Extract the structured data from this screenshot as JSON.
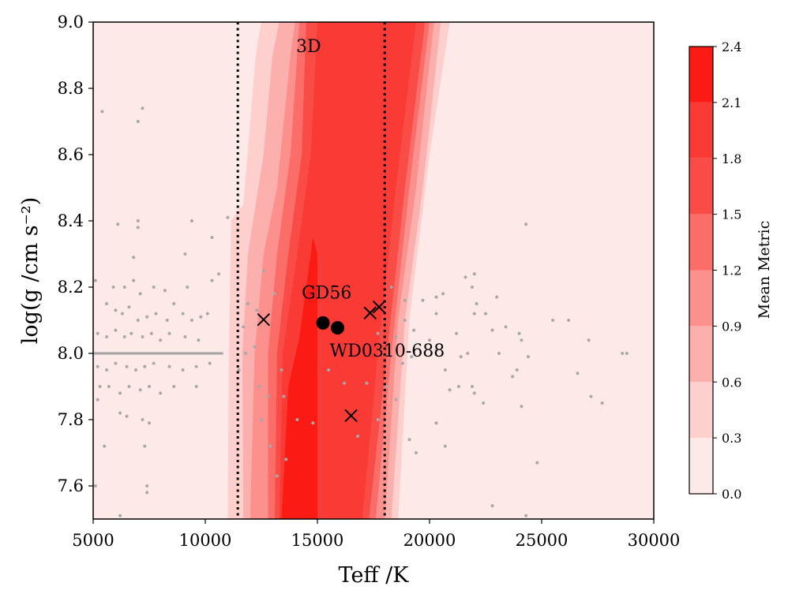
{
  "chart_data": {
    "type": "contour",
    "xlabel": "Teff /K",
    "ylabel": "log(g /cm s⁻²)",
    "xlim": [
      5000,
      30000
    ],
    "ylim": [
      7.5,
      9.0
    ],
    "xticks": [
      "5000",
      "10000",
      "15000",
      "20000",
      "25000",
      "30000"
    ],
    "yticks": [
      "7.6",
      "7.8",
      "8.0",
      "8.2",
      "8.4",
      "8.6",
      "8.8",
      "9.0"
    ],
    "colorbar": {
      "label": "Mean Metric",
      "range": [
        0.0,
        2.4
      ],
      "ticks": [
        "0.0",
        "0.3",
        "0.6",
        "0.9",
        "1.2",
        "1.5",
        "1.8",
        "2.1",
        "2.4"
      ],
      "level_colors": [
        "#fde9e8",
        "#fdcfcd",
        "#fcb0ad",
        "#fc908c",
        "#fb6d68",
        "#fa4c47",
        "#f93a35",
        "#fa1b15"
      ]
    },
    "contour_bands": [
      {
        "level": 1,
        "left": [
          [
            11000,
            7.5
          ],
          [
            11050,
            8.0
          ],
          [
            11150,
            8.4
          ],
          [
            11700,
            8.45
          ],
          [
            12250,
            8.9
          ],
          [
            12500,
            9.0
          ]
        ],
        "right": [
          [
            20900,
            9.0
          ],
          [
            20000,
            8.6
          ],
          [
            19100,
            8.1
          ],
          [
            18600,
            7.5
          ]
        ]
      },
      {
        "level": 2,
        "left": [
          [
            11700,
            7.5
          ],
          [
            11650,
            8.0
          ],
          [
            11900,
            8.3
          ],
          [
            12600,
            8.6
          ],
          [
            13000,
            8.9
          ],
          [
            13300,
            9.0
          ]
        ],
        "right": [
          [
            20500,
            9.0
          ],
          [
            19700,
            8.5
          ],
          [
            18900,
            8.1
          ],
          [
            18300,
            7.5
          ]
        ]
      },
      {
        "level": 3,
        "left": [
          [
            12000,
            7.5
          ],
          [
            12200,
            8.0
          ],
          [
            12600,
            8.3
          ],
          [
            13200,
            8.5
          ],
          [
            13800,
            8.9
          ],
          [
            14000,
            9.0
          ]
        ],
        "right": [
          [
            20200,
            9.0
          ],
          [
            19400,
            8.5
          ],
          [
            18600,
            8.1
          ],
          [
            18000,
            7.5
          ]
        ]
      },
      {
        "level": 4,
        "left": [
          [
            12800,
            7.5
          ],
          [
            12800,
            8.0
          ],
          [
            13200,
            8.3
          ],
          [
            13800,
            8.6
          ],
          [
            14200,
            9.0
          ]
        ],
        "right": [
          [
            20000,
            9.0
          ],
          [
            19100,
            8.5
          ],
          [
            18300,
            8.0
          ],
          [
            17600,
            7.5
          ]
        ]
      },
      {
        "level": 5,
        "left": [
          [
            13100,
            7.5
          ],
          [
            13200,
            8.0
          ],
          [
            13700,
            8.3
          ],
          [
            14300,
            8.6
          ],
          [
            14500,
            9.0
          ]
        ],
        "right": [
          [
            19800,
            9.0
          ],
          [
            18900,
            8.5
          ],
          [
            18100,
            8.0
          ],
          [
            17300,
            7.5
          ]
        ]
      },
      {
        "level": 6,
        "left": [
          [
            13300,
            7.5
          ],
          [
            13450,
            8.0
          ],
          [
            14100,
            8.3
          ],
          [
            14700,
            8.6
          ],
          [
            15000,
            9.0
          ]
        ],
        "right": [
          [
            19400,
            9.0
          ],
          [
            18500,
            8.5
          ],
          [
            17700,
            8.0
          ],
          [
            17000,
            7.5
          ]
        ]
      },
      {
        "level": 7,
        "left": [
          [
            13400,
            7.5
          ],
          [
            13700,
            7.9
          ],
          [
            14200,
            8.05
          ],
          [
            14800,
            8.35
          ],
          [
            15000,
            8.3
          ],
          [
            15000,
            7.5
          ]
        ],
        "right": []
      }
    ],
    "vlines": [
      11450,
      18000
    ],
    "annotations": [
      {
        "text": "3D",
        "x": 14050,
        "y": 8.91
      },
      {
        "text": "GD56",
        "x": 14300,
        "y": 8.165
      },
      {
        "text": "WD0310-688",
        "x": 15550,
        "y": 7.99
      }
    ],
    "circles": [
      {
        "x": 15250,
        "y": 8.092
      },
      {
        "x": 15900,
        "y": 8.077
      }
    ],
    "crosses": [
      {
        "x": 12600,
        "y": 8.102
      },
      {
        "x": 17350,
        "y": 8.122
      },
      {
        "x": 17750,
        "y": 8.14
      },
      {
        "x": 16500,
        "y": 7.812
      }
    ],
    "background_points": [
      [
        5400,
        8.73
      ],
      [
        7000,
        8.7
      ],
      [
        7200,
        8.74
      ],
      [
        6100,
        8.39
      ],
      [
        7000,
        8.4
      ],
      [
        7000,
        8.38
      ],
      [
        9400,
        8.4
      ],
      [
        11000,
        8.41
      ],
      [
        10300,
        8.35
      ],
      [
        9100,
        8.3
      ],
      [
        6800,
        8.29
      ],
      [
        5100,
        8.22
      ],
      [
        5900,
        8.2
      ],
      [
        6400,
        8.2
      ],
      [
        6800,
        8.22
      ],
      [
        7100,
        8.18
      ],
      [
        7700,
        8.2
      ],
      [
        8200,
        8.19
      ],
      [
        8600,
        8.15
      ],
      [
        9200,
        8.2
      ],
      [
        10300,
        8.22
      ],
      [
        10600,
        8.24
      ],
      [
        5600,
        8.15
      ],
      [
        6000,
        8.13
      ],
      [
        6300,
        8.12
      ],
      [
        6600,
        8.14
      ],
      [
        7000,
        8.1
      ],
      [
        7400,
        8.11
      ],
      [
        7800,
        8.12
      ],
      [
        8300,
        8.1
      ],
      [
        9000,
        8.12
      ],
      [
        9400,
        8.1
      ],
      [
        9800,
        8.11
      ],
      [
        10100,
        8.12
      ],
      [
        5200,
        8.06
      ],
      [
        5600,
        8.05
      ],
      [
        6000,
        8.07
      ],
      [
        6400,
        8.05
      ],
      [
        6700,
        8.06
      ],
      [
        7200,
        8.05
      ],
      [
        7600,
        8.06
      ],
      [
        8000,
        8.04
      ],
      [
        8400,
        8.06
      ],
      [
        9100,
        8.05
      ],
      [
        9700,
        8.04
      ],
      [
        5200,
        7.96
      ],
      [
        5600,
        7.95
      ],
      [
        6000,
        7.97
      ],
      [
        6500,
        7.96
      ],
      [
        6900,
        7.95
      ],
      [
        7300,
        7.96
      ],
      [
        7700,
        7.97
      ],
      [
        8400,
        7.96
      ],
      [
        9000,
        7.95
      ],
      [
        9600,
        7.96
      ],
      [
        10200,
        7.97
      ],
      [
        5300,
        7.9
      ],
      [
        5700,
        7.9
      ],
      [
        6200,
        7.88
      ],
      [
        6600,
        7.9
      ],
      [
        7100,
        7.89
      ],
      [
        7500,
        7.9
      ],
      [
        8000,
        7.88
      ],
      [
        8600,
        7.9
      ],
      [
        9600,
        7.9
      ],
      [
        5200,
        7.86
      ],
      [
        6200,
        7.82
      ],
      [
        6500,
        7.81
      ],
      [
        7200,
        7.8
      ],
      [
        7500,
        7.79
      ],
      [
        5500,
        7.72
      ],
      [
        7300,
        7.72
      ],
      [
        7400,
        7.6
      ],
      [
        7400,
        7.58
      ],
      [
        5100,
        7.6
      ],
      [
        6200,
        7.51
      ],
      [
        11800,
        8.0
      ],
      [
        12200,
        8.02
      ],
      [
        11900,
        8.15
      ],
      [
        12300,
        8.13
      ],
      [
        12600,
        8.25
      ],
      [
        13100,
        8.18
      ],
      [
        12400,
        7.9
      ],
      [
        12800,
        7.87
      ],
      [
        13400,
        7.95
      ],
      [
        12500,
        7.8
      ],
      [
        12900,
        7.72
      ],
      [
        13600,
        7.68
      ],
      [
        13200,
        7.63
      ],
      [
        14100,
        7.8
      ],
      [
        14800,
        7.79
      ],
      [
        13500,
        7.87
      ],
      [
        11500,
        7.95
      ],
      [
        11700,
        8.08
      ],
      [
        15500,
        7.95
      ],
      [
        16200,
        7.91
      ],
      [
        16800,
        7.75
      ],
      [
        17200,
        7.91
      ],
      [
        17700,
        8.06
      ],
      [
        17700,
        7.8
      ],
      [
        18500,
        7.86
      ],
      [
        18100,
        7.9
      ],
      [
        18800,
        7.97
      ],
      [
        19200,
        7.99
      ],
      [
        18500,
        8.05
      ],
      [
        18900,
        8.1
      ],
      [
        19300,
        8.07
      ],
      [
        18900,
        8.16
      ],
      [
        18300,
        8.2
      ],
      [
        19700,
        8.16
      ],
      [
        20300,
        8.17
      ],
      [
        20600,
        8.18
      ],
      [
        20300,
        8.12
      ],
      [
        20000,
        8.04
      ],
      [
        20300,
        8.01
      ],
      [
        20700,
        7.95
      ],
      [
        20900,
        7.89
      ],
      [
        21300,
        7.9
      ],
      [
        21400,
        7.99
      ],
      [
        21700,
        8.0
      ],
      [
        22000,
        8.12
      ],
      [
        21200,
        8.06
      ],
      [
        22100,
        8.15
      ],
      [
        21600,
        8.23
      ],
      [
        21900,
        8.2
      ],
      [
        22000,
        8.24
      ],
      [
        22500,
        8.12
      ],
      [
        22800,
        8.07
      ],
      [
        23000,
        8.17
      ],
      [
        23400,
        8.08
      ],
      [
        23700,
        7.93
      ],
      [
        24000,
        8.06
      ],
      [
        24100,
        8.04
      ],
      [
        24400,
        7.99
      ],
      [
        24100,
        7.84
      ],
      [
        19100,
        7.74
      ],
      [
        19400,
        7.7
      ],
      [
        20300,
        7.79
      ],
      [
        20700,
        7.72
      ],
      [
        21900,
        7.9
      ],
      [
        22000,
        7.88
      ],
      [
        22400,
        7.85
      ],
      [
        23100,
        8.0
      ],
      [
        23900,
        7.95
      ],
      [
        24800,
        7.67
      ],
      [
        22800,
        7.54
      ],
      [
        24300,
        7.51
      ],
      [
        24300,
        8.39
      ],
      [
        25500,
        8.1
      ],
      [
        26200,
        8.1
      ],
      [
        26600,
        7.94
      ],
      [
        27100,
        8.04
      ],
      [
        27200,
        7.87
      ],
      [
        27700,
        7.85
      ],
      [
        28600,
        8.0
      ],
      [
        28800,
        8.0
      ]
    ],
    "background_line": {
      "from": 5000,
      "to": 10800,
      "y": 8.0
    }
  }
}
